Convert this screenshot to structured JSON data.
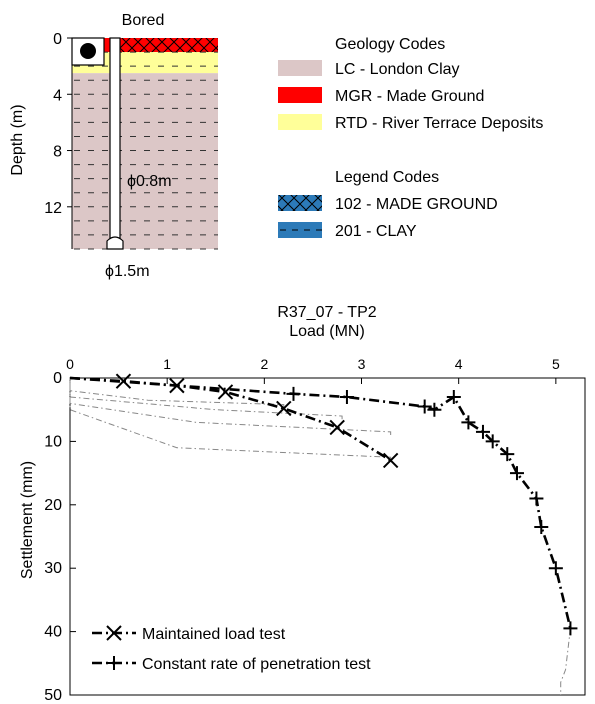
{
  "borehole": {
    "title": "Bored",
    "ylabel": "Depth (m)",
    "yticks": [
      "0",
      "4",
      "8",
      "12"
    ],
    "shaft_label": "ϕ0.8m",
    "base_label": "ϕ1.5m",
    "geology_title": "Geology Codes",
    "geology": [
      {
        "code": "LC",
        "label": "LC - London Clay",
        "color": "#dcc7c7"
      },
      {
        "code": "MGR",
        "label": "MGR - Made Ground",
        "color": "#ff0000"
      },
      {
        "code": "RTD",
        "label": "RTD - River Terrace Deposits",
        "color": "#ffff99"
      }
    ],
    "legend_title": "Legend Codes",
    "legend": [
      {
        "code": "102",
        "label": "102 - MADE GROUND",
        "pattern": "cross-hatch",
        "color": "#2c7ab8"
      },
      {
        "code": "201",
        "label": "201 - CLAY",
        "pattern": "dashes",
        "color": "#2c7ab8"
      }
    ],
    "layers": [
      {
        "geology": "MGR",
        "top": 0,
        "bottom": 1
      },
      {
        "geology": "RTD",
        "top": 1,
        "bottom": 2.5
      },
      {
        "geology": "LC",
        "top": 2.5,
        "bottom": 15
      }
    ],
    "depth_range": [
      0,
      15
    ]
  },
  "chart_data": {
    "type": "line",
    "title": "R37_07 - TP2",
    "xlabel": "Load (MN)",
    "ylabel": "Settlement (mm)",
    "xlim": [
      0,
      5.3
    ],
    "ylim": [
      0,
      50
    ],
    "y_inverted": true,
    "x_axis_position": "top",
    "xticks": [
      0,
      1,
      2,
      3,
      4,
      5
    ],
    "yticks": [
      0,
      10,
      20,
      30,
      40,
      50
    ],
    "legend_position": "bottom-left",
    "series": [
      {
        "name": "Maintained load test",
        "marker": "x",
        "x": [
          0,
          0.55,
          1.1,
          1.6,
          2.2,
          2.75,
          3.3
        ],
        "y": [
          0,
          0.5,
          1.2,
          2.2,
          4.8,
          7.8,
          13
        ]
      },
      {
        "name": "Constant rate of penetration test",
        "marker": "+",
        "x": [
          0,
          2.3,
          2.85,
          3.65,
          3.75,
          3.95,
          4.1,
          4.25,
          4.35,
          4.5,
          4.6,
          4.8,
          4.85,
          5.0,
          5.15
        ],
        "y": [
          0,
          2.5,
          3.0,
          4.5,
          5.0,
          3.0,
          7.0,
          8.5,
          10,
          12,
          15,
          19,
          23.5,
          30,
          39.5
        ]
      }
    ],
    "unload_curves": [
      {
        "x": [
          3.3,
          3.3,
          1.1,
          0,
          0
        ],
        "y": [
          13,
          12.5,
          11,
          5,
          0
        ]
      },
      {
        "x": [
          3.3,
          3.3,
          1.3,
          0,
          0
        ],
        "y": [
          9,
          8.5,
          7,
          4,
          0
        ]
      },
      {
        "x": [
          2.8,
          2.8,
          1.5,
          0,
          0
        ],
        "y": [
          6.5,
          6,
          5,
          3,
          0
        ]
      },
      {
        "x": [
          2.2,
          2.2,
          0.8,
          0,
          0
        ],
        "y": [
          4.8,
          4.2,
          3.5,
          2,
          0
        ]
      },
      {
        "x": [
          5.15,
          5.1,
          5.05,
          5.05
        ],
        "y": [
          39.5,
          46,
          48,
          50
        ]
      }
    ]
  }
}
